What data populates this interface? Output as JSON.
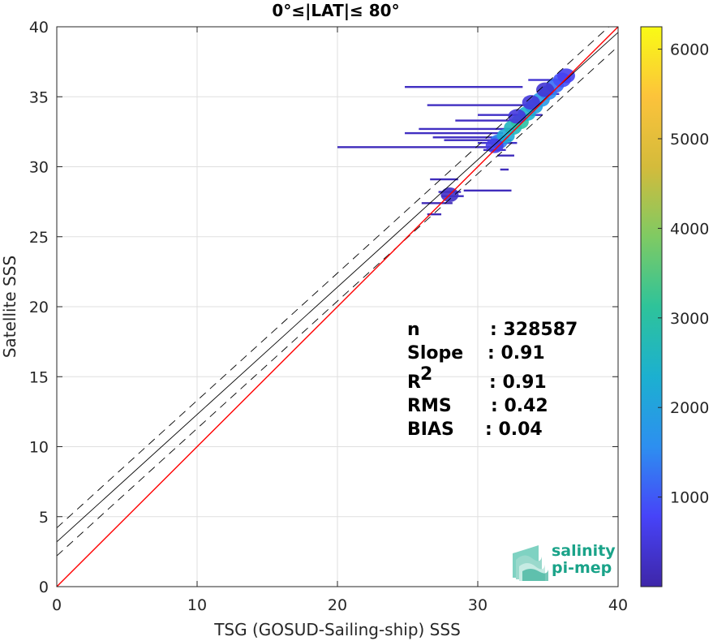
{
  "chart_data": {
    "type": "scatter",
    "title": "0°≤|LAT|≤ 80°",
    "xlabel": "TSG (GOSUD-Sailing-ship) SSS",
    "ylabel": "Satellite SSS",
    "xlim": [
      0,
      40
    ],
    "ylim": [
      0,
      40
    ],
    "xticks": [
      "0",
      "10",
      "20",
      "30",
      "40"
    ],
    "yticks": [
      "0",
      "5",
      "10",
      "15",
      "20",
      "25",
      "30",
      "35",
      "40"
    ],
    "grid": true,
    "lines": {
      "identity": {
        "slope": 1,
        "intercept": 0,
        "color": "#ff0000"
      },
      "regression": {
        "slope": 0.91,
        "intercept": 3.2,
        "color": "#000000"
      },
      "upper_bound": {
        "slope": 0.91,
        "intercept": 4.2,
        "color": "#000000",
        "style": "dashed"
      },
      "lower_bound": {
        "slope": 0.91,
        "intercept": 2.2,
        "color": "#000000",
        "style": "dashed"
      }
    },
    "density_points": [
      {
        "x": 31.5,
        "y": 31.8,
        "c": 1400
      },
      {
        "x": 32.0,
        "y": 32.2,
        "c": 2200
      },
      {
        "x": 32.5,
        "y": 32.8,
        "c": 2600
      },
      {
        "x": 33.0,
        "y": 33.2,
        "c": 3000
      },
      {
        "x": 33.5,
        "y": 33.8,
        "c": 2400
      },
      {
        "x": 34.0,
        "y": 34.3,
        "c": 2000
      },
      {
        "x": 34.5,
        "y": 34.8,
        "c": 1800
      },
      {
        "x": 35.0,
        "y": 35.3,
        "c": 1500
      },
      {
        "x": 35.5,
        "y": 35.8,
        "c": 1200
      },
      {
        "x": 36.0,
        "y": 36.2,
        "c": 900
      },
      {
        "x": 36.3,
        "y": 36.5,
        "c": 700
      },
      {
        "x": 31.2,
        "y": 31.5,
        "c": 600
      },
      {
        "x": 32.8,
        "y": 33.6,
        "c": 500
      },
      {
        "x": 33.8,
        "y": 34.6,
        "c": 500
      },
      {
        "x": 34.8,
        "y": 35.5,
        "c": 400
      },
      {
        "x": 28.0,
        "y": 28.0,
        "c": 300
      }
    ],
    "density_streaks": [
      {
        "x1": 24.8,
        "x2": 33.2,
        "y": 35.7,
        "c": 250
      },
      {
        "x1": 33.6,
        "x2": 35.8,
        "y": 36.2,
        "c": 400
      },
      {
        "x1": 34.4,
        "x2": 35.8,
        "y": 35.2,
        "c": 350
      },
      {
        "x1": 26.4,
        "x2": 34.0,
        "y": 34.4,
        "c": 250
      },
      {
        "x1": 30.0,
        "x2": 34.6,
        "y": 33.7,
        "c": 300
      },
      {
        "x1": 28.4,
        "x2": 33.4,
        "y": 33.3,
        "c": 250
      },
      {
        "x1": 25.8,
        "x2": 32.6,
        "y": 32.7,
        "c": 250
      },
      {
        "x1": 24.8,
        "x2": 31.8,
        "y": 32.4,
        "c": 250
      },
      {
        "x1": 26.8,
        "x2": 32.2,
        "y": 32.1,
        "c": 250
      },
      {
        "x1": 27.6,
        "x2": 32.4,
        "y": 31.9,
        "c": 250
      },
      {
        "x1": 30.0,
        "x2": 32.8,
        "y": 31.7,
        "c": 300
      },
      {
        "x1": 20.0,
        "x2": 31.0,
        "y": 31.4,
        "c": 200
      },
      {
        "x1": 30.4,
        "x2": 32.0,
        "y": 31.2,
        "c": 250
      },
      {
        "x1": 31.4,
        "x2": 32.6,
        "y": 30.8,
        "c": 200
      },
      {
        "x1": 31.6,
        "x2": 32.2,
        "y": 29.8,
        "c": 200
      },
      {
        "x1": 26.6,
        "x2": 28.6,
        "y": 29.1,
        "c": 200
      },
      {
        "x1": 27.2,
        "x2": 28.8,
        "y": 28.2,
        "c": 250
      },
      {
        "x1": 27.4,
        "x2": 29.0,
        "y": 27.9,
        "c": 250
      },
      {
        "x1": 29.0,
        "x2": 32.4,
        "y": 28.3,
        "c": 200
      },
      {
        "x1": 26.0,
        "x2": 28.2,
        "y": 27.4,
        "c": 150
      },
      {
        "x1": 26.4,
        "x2": 27.4,
        "y": 26.6,
        "c": 150
      }
    ],
    "colorbar": {
      "min": 0,
      "max": 6250,
      "ticks": [
        "1000",
        "2000",
        "3000",
        "4000",
        "5000",
        "6000"
      ],
      "colors": [
        "#3e26a8",
        "#4743f8",
        "#2d8ff0",
        "#1cb0d0",
        "#2ec39a",
        "#7fca63",
        "#d4bb3b",
        "#fcc33b",
        "#f9fb15"
      ]
    },
    "stats": [
      {
        "label": "n",
        "value": ": 328587"
      },
      {
        "label": "Slope",
        "value": ": 0.91"
      },
      {
        "label": "R",
        "sup": "2",
        "value": ": 0.91"
      },
      {
        "label": "RMS",
        "value": ": 0.42"
      },
      {
        "label": "BIAS",
        "value": ": 0.04"
      }
    ]
  },
  "logo": {
    "line1": "salinity",
    "line2": "pi-mep",
    "color": "#1aa389"
  }
}
